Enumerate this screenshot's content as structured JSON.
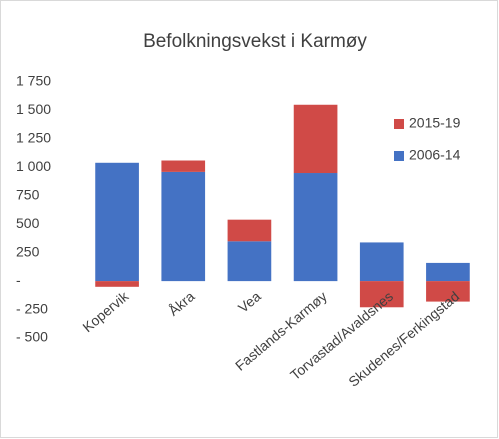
{
  "chart_data": {
    "type": "stacked_bar",
    "title": "Befolkningsvekst i Karmøy",
    "categories": [
      "Kopervik",
      "Åkra",
      "Vea",
      "Fastlands-Karmøy",
      "Torvastad/Avaldsnes",
      "Skudenes/Ferkingstad"
    ],
    "series": [
      {
        "name": "2006-14",
        "color": "#4472c4",
        "values": [
          1040,
          960,
          350,
          950,
          340,
          160
        ]
      },
      {
        "name": "2015-19",
        "color": "#d04a47",
        "values": [
          -50,
          100,
          190,
          600,
          -230,
          -180
        ]
      }
    ],
    "ylim": [
      -500,
      1750
    ],
    "yticks": [
      {
        "value": -500,
        "label": "- 500"
      },
      {
        "value": -250,
        "label": "- 250"
      },
      {
        "value": 0,
        "label": "-"
      },
      250,
      500,
      750,
      {
        "value": 1000,
        "label": "1 000"
      },
      {
        "value": 1250,
        "label": "1 250"
      },
      {
        "value": 1500,
        "label": "1 500"
      },
      {
        "value": 1750,
        "label": "1 750"
      }
    ],
    "grid": false,
    "legend": "right"
  }
}
